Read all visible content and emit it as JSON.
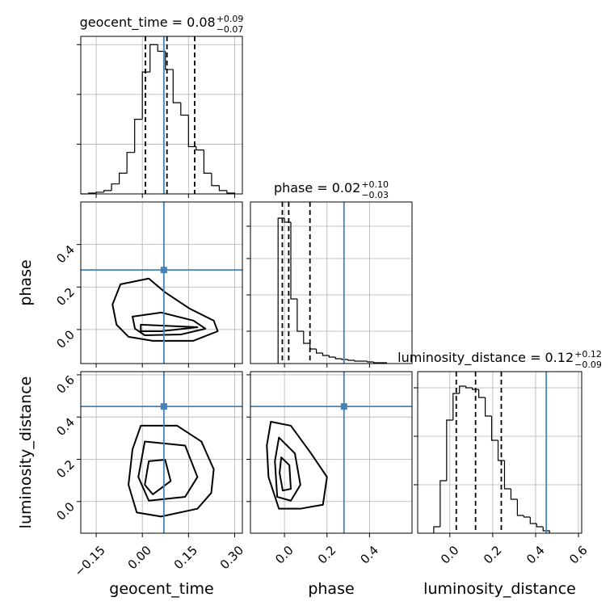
{
  "chart_data": {
    "type": "corner",
    "hist_color": "#000000",
    "truth_color": "#4682b4",
    "grid": true,
    "parameters": [
      {
        "name": "geocent_time",
        "title": {
          "text": "geocent_time =",
          "median": 0.08,
          "plus": {
            "value": 0.09,
            "label": "+0.09"
          },
          "minus": {
            "value": -0.07,
            "label": "−0.07"
          }
        },
        "xlim": [
          -0.2,
          0.325
        ],
        "xticks": [
          {
            "value": -0.15,
            "label": "−0.15"
          },
          {
            "value": 0,
            "label": "0.00"
          },
          {
            "value": 0.15,
            "label": "0.15"
          },
          {
            "value": 0.3,
            "label": "0.30"
          }
        ],
        "truth": 0.07,
        "quantiles": [
          0.01,
          0.08,
          0.17
        ],
        "bins": [
          -0.2,
          -0.175,
          -0.15,
          -0.125,
          -0.1,
          -0.075,
          -0.05,
          -0.025,
          0,
          0.025,
          0.05,
          0.075,
          0.1,
          0.125,
          0.15,
          0.175,
          0.2,
          0.225,
          0.25,
          0.275,
          0.3
        ],
        "counts": [
          0,
          1,
          2,
          4,
          12,
          25,
          50,
          90,
          147,
          180,
          172,
          150,
          110,
          95,
          57,
          53,
          25,
          10,
          4,
          1
        ],
        "count_ylim": [
          0,
          190
        ],
        "count_yticks": [
          60,
          120,
          180
        ]
      },
      {
        "name": "phase",
        "title": {
          "text": "phase =",
          "median": 0.02,
          "plus": {
            "value": 0.1,
            "label": "+0.10"
          },
          "minus": {
            "value": -0.03,
            "label": "−0.03"
          }
        },
        "xlim": [
          -0.16,
          0.6
        ],
        "xticks": [
          {
            "value": 0,
            "label": "0.0"
          },
          {
            "value": 0.2,
            "label": "0.2"
          },
          {
            "value": 0.4,
            "label": "0.4"
          }
        ],
        "truth": 0.28,
        "quantiles": [
          -0.01,
          0.02,
          0.12
        ],
        "bins": [
          -0.03,
          0,
          0.03,
          0.06,
          0.09,
          0.12,
          0.15,
          0.18,
          0.21,
          0.24,
          0.27,
          0.3,
          0.33,
          0.36,
          0.39,
          0.42,
          0.45,
          0.48
        ],
        "counts": [
          180,
          175,
          80,
          40,
          25,
          18,
          13,
          10,
          8,
          6,
          5,
          4,
          3,
          3,
          2,
          1,
          1
        ],
        "count_ylim": [
          0,
          200
        ],
        "count_yticks": [
          40,
          85,
          130,
          170
        ]
      },
      {
        "name": "luminosity_distance",
        "title": {
          "text": "luminosity_distance =",
          "median": 0.12,
          "plus": {
            "value": 0.12,
            "label": "+0.12"
          },
          "minus": {
            "value": -0.09,
            "label": "−0.09"
          }
        },
        "xlim": [
          -0.15,
          0.615
        ],
        "xticks": [
          {
            "value": 0,
            "label": "0.0"
          },
          {
            "value": 0.2,
            "label": "0.2"
          },
          {
            "value": 0.4,
            "label": "0.4"
          },
          {
            "value": 0.6,
            "label": "0.6"
          }
        ],
        "truth": 0.45,
        "quantiles": [
          0.03,
          0.12,
          0.24
        ],
        "bins": [
          -0.075,
          -0.045,
          -0.015,
          0.015,
          0.045,
          0.075,
          0.105,
          0.135,
          0.165,
          0.195,
          0.225,
          0.255,
          0.285,
          0.315,
          0.345,
          0.375,
          0.405,
          0.435,
          0.465
        ],
        "counts": [
          8,
          65,
          140,
          173,
          182,
          180,
          178,
          168,
          145,
          115,
          90,
          55,
          42,
          22,
          20,
          12,
          8,
          3
        ],
        "count_ylim": [
          0,
          200
        ],
        "count_yticks": [
          60,
          120,
          180
        ]
      }
    ],
    "pairs": [
      {
        "contours": [
          {
            "x": [
              -0.071,
              0.021,
              0.074,
              0.153,
              0.232,
              0.245,
              0.166,
              0.034,
              -0.045,
              -0.084,
              -0.097
            ],
            "y": [
              0.213,
              0.24,
              0.175,
              0.099,
              0.042,
              -0.008,
              -0.053,
              -0.053,
              -0.034,
              0.023,
              0.118
            ]
          },
          {
            "x": [
              -0.032,
              0.061,
              0.166,
              0.205,
              0.126,
              0.008,
              -0.024
            ],
            "y": [
              0.061,
              0.08,
              0.042,
              0.004,
              -0.023,
              -0.027,
              0.004
            ]
          },
          {
            "x": [
              -0.005,
              0.179,
              0.061,
              -0.005
            ],
            "y": [
              0.023,
              0.011,
              -0.008,
              -0.008
            ]
          }
        ]
      },
      {
        "contours": [
          {
            "x": [
              -0.005,
              0.113,
              0.192,
              0.232,
              0.224,
              0.179,
              0.061,
              -0.018,
              -0.045,
              -0.032
            ],
            "y": [
              0.359,
              0.359,
              0.284,
              0.153,
              0.041,
              -0.034,
              -0.071,
              -0.052,
              0.079,
              0.247
            ]
          },
          {
            "x": [
              0.008,
              0.139,
              0.179,
              0.139,
              0.021,
              -0.013
            ],
            "y": [
              0.284,
              0.265,
              0.116,
              0.022,
              0.004,
              0.116
            ]
          },
          {
            "x": [
              0.021,
              0.074,
              0.092,
              0.034,
              0.008
            ],
            "y": [
              0.191,
              0.198,
              0.097,
              0.034,
              0.079
            ]
          }
        ]
      },
      {
        "contours": [
          {
            "x": [
              -0.064,
              0.03,
              0.125,
              0.2,
              0.181,
              0.075,
              -0.026,
              -0.075,
              -0.083
            ],
            "y": [
              0.378,
              0.359,
              0.228,
              0.116,
              -0.015,
              -0.034,
              -0.034,
              0.116,
              0.265
            ]
          },
          {
            "x": [
              -0.026,
              0.049,
              0.075,
              0.03,
              -0.034,
              -0.045
            ],
            "y": [
              0.303,
              0.228,
              0.079,
              0.004,
              0.022,
              0.191
            ]
          },
          {
            "x": [
              -0.015,
              0.023,
              0.03,
              -0.008,
              -0.023
            ],
            "y": [
              0.209,
              0.172,
              0.06,
              0.052,
              0.135
            ]
          }
        ]
      }
    ]
  }
}
